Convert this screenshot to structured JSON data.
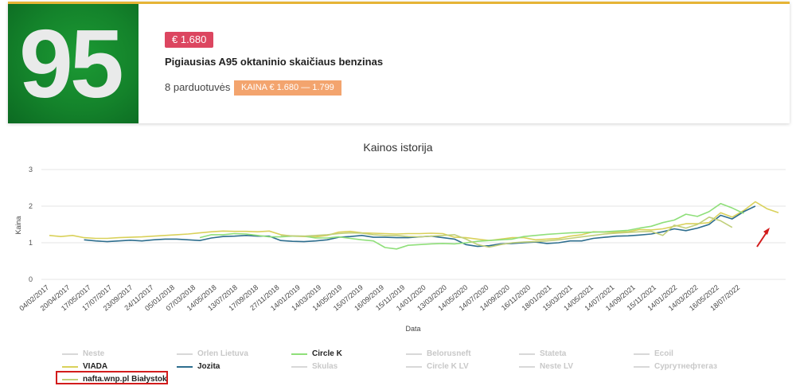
{
  "product": {
    "octane_badge": "95",
    "price": "€ 1.680",
    "title": "Pigiausias A95 oktaninio skaičiaus benzinas",
    "stores": "8 parduotuvės",
    "range": "KAINA € 1.680 — 1.799"
  },
  "colors": {
    "card_accent": "#e6b435",
    "price_tag": "#dc4660",
    "range_tag": "#f3a46e",
    "series_viada": "#d9d15a",
    "series_jozita": "#2e6e8e",
    "series_circlek": "#8fdf7a",
    "series_nafta": "#c0cf7a",
    "disabled": "#cccccc",
    "highlight": "#d21c1c"
  },
  "chart_data": {
    "type": "line",
    "title": "Kainos istorija",
    "xlabel": "Data",
    "ylabel": "Kaina",
    "ylim": [
      0,
      3
    ],
    "yticks": [
      "0",
      "1",
      "2",
      "3"
    ],
    "xticks": [
      "04/02/2017",
      "20/04/2017",
      "17/05/2017",
      "17/07/2017",
      "23/09/2017",
      "24/11/2017",
      "05/01/2018",
      "07/03/2018",
      "14/05/2018",
      "13/07/2018",
      "17/09/2018",
      "27/11/2018",
      "14/01/2019",
      "14/03/2019",
      "14/05/2019",
      "15/07/2019",
      "16/09/2019",
      "15/11/2019",
      "14/01/2020",
      "13/03/2020",
      "14/05/2020",
      "14/07/2020",
      "14/09/2020",
      "16/11/2020",
      "18/01/2021",
      "15/03/2021",
      "14/05/2021",
      "14/07/2021",
      "14/09/2021",
      "15/11/2021",
      "14/01/2022",
      "14/03/2022",
      "16/05/2022",
      "18/07/2022"
    ],
    "grid": true,
    "legend_position": "bottom",
    "series": [
      {
        "name": "VIADA",
        "x_start": 0,
        "values": [
          1.2,
          1.17,
          1.2,
          1.14,
          1.12,
          1.12,
          1.14,
          1.15,
          1.16,
          1.18,
          1.2,
          1.22,
          1.24,
          1.27,
          1.3,
          1.32,
          1.31,
          1.31,
          1.3,
          1.32,
          1.22,
          1.18,
          1.17,
          1.16,
          1.2,
          1.29,
          1.31,
          1.27,
          1.26,
          1.25,
          1.24,
          1.25,
          1.25,
          1.26,
          1.25,
          1.15,
          1.14,
          1.1,
          1.06,
          1.1,
          1.14,
          1.14,
          1.08,
          1.1,
          1.12,
          1.18,
          1.22,
          1.3,
          1.29,
          1.29,
          1.3,
          1.36,
          1.35,
          1.38,
          1.45,
          1.52,
          1.52,
          1.55,
          1.82,
          1.7,
          1.88,
          2.12,
          1.93,
          1.82
        ]
      },
      {
        "name": "Jozita",
        "x_start": 3,
        "values": [
          1.08,
          1.05,
          1.03,
          1.05,
          1.07,
          1.05,
          1.08,
          1.1,
          1.1,
          1.08,
          1.06,
          1.13,
          1.17,
          1.18,
          1.2,
          1.18,
          1.18,
          1.06,
          1.04,
          1.03,
          1.05,
          1.08,
          1.15,
          1.17,
          1.2,
          1.15,
          1.15,
          1.14,
          1.14,
          1.16,
          1.18,
          1.14,
          1.1,
          0.95,
          0.9,
          0.92,
          0.97,
          0.98,
          1.0,
          1.02,
          0.98,
          1.0,
          1.05,
          1.05,
          1.12,
          1.15,
          1.18,
          1.19,
          1.21,
          1.24,
          1.3,
          1.38,
          1.33,
          1.4,
          1.5,
          1.75,
          1.65,
          1.85,
          2.0
        ]
      },
      {
        "name": "Circle K",
        "x_start": 13,
        "values": [
          1.14,
          1.22,
          1.22,
          1.25,
          1.24,
          1.2,
          1.16,
          1.16,
          1.18,
          1.18,
          1.13,
          1.13,
          1.16,
          1.12,
          1.08,
          1.05,
          0.87,
          0.83,
          0.93,
          0.95,
          0.97,
          0.98,
          0.97,
          1.0,
          1.04,
          1.06,
          1.08,
          1.1,
          1.17,
          1.2,
          1.23,
          1.25,
          1.27,
          1.28,
          1.29,
          1.3,
          1.32,
          1.34,
          1.4,
          1.45,
          1.55,
          1.62,
          1.78,
          1.72,
          1.85,
          2.07,
          1.95,
          1.8
        ]
      },
      {
        "name": "nafta.wnp.pl Białystok",
        "x_start": 20,
        "values": [
          1.2,
          1.19,
          1.18,
          1.2,
          1.22,
          1.25,
          1.27,
          1.26,
          1.22,
          1.2,
          1.2,
          1.17,
          1.16,
          1.18,
          1.2,
          1.22,
          1.1,
          0.95,
          0.88,
          0.95,
          1.0,
          1.02,
          1.03,
          1.05,
          1.08,
          1.12,
          1.16,
          1.2,
          1.24,
          1.26,
          1.28,
          1.3,
          1.31,
          1.2,
          1.48,
          1.4,
          1.5,
          1.7,
          1.6,
          1.42
        ]
      }
    ]
  },
  "legend": [
    {
      "label": "Neste",
      "active": false
    },
    {
      "label": "Orlen Lietuva",
      "active": false
    },
    {
      "label": "Circle K",
      "active": true,
      "color": "#8fdf7a"
    },
    {
      "label": "Belorusneft",
      "active": false
    },
    {
      "label": "Stateta",
      "active": false
    },
    {
      "label": "Ecoil",
      "active": false
    },
    {
      "label": "VIADA",
      "active": true,
      "color": "#d9d15a"
    },
    {
      "label": "Jozita",
      "active": true,
      "color": "#2e6e8e"
    },
    {
      "label": "Skulas",
      "active": false
    },
    {
      "label": "Circle K LV",
      "active": false
    },
    {
      "label": "Neste LV",
      "active": false
    },
    {
      "label": "Сургутнефтегаз",
      "active": false
    },
    {
      "label": "nafta.wnp.pl Białystok",
      "active": true,
      "color": "#c0cf7a"
    }
  ]
}
